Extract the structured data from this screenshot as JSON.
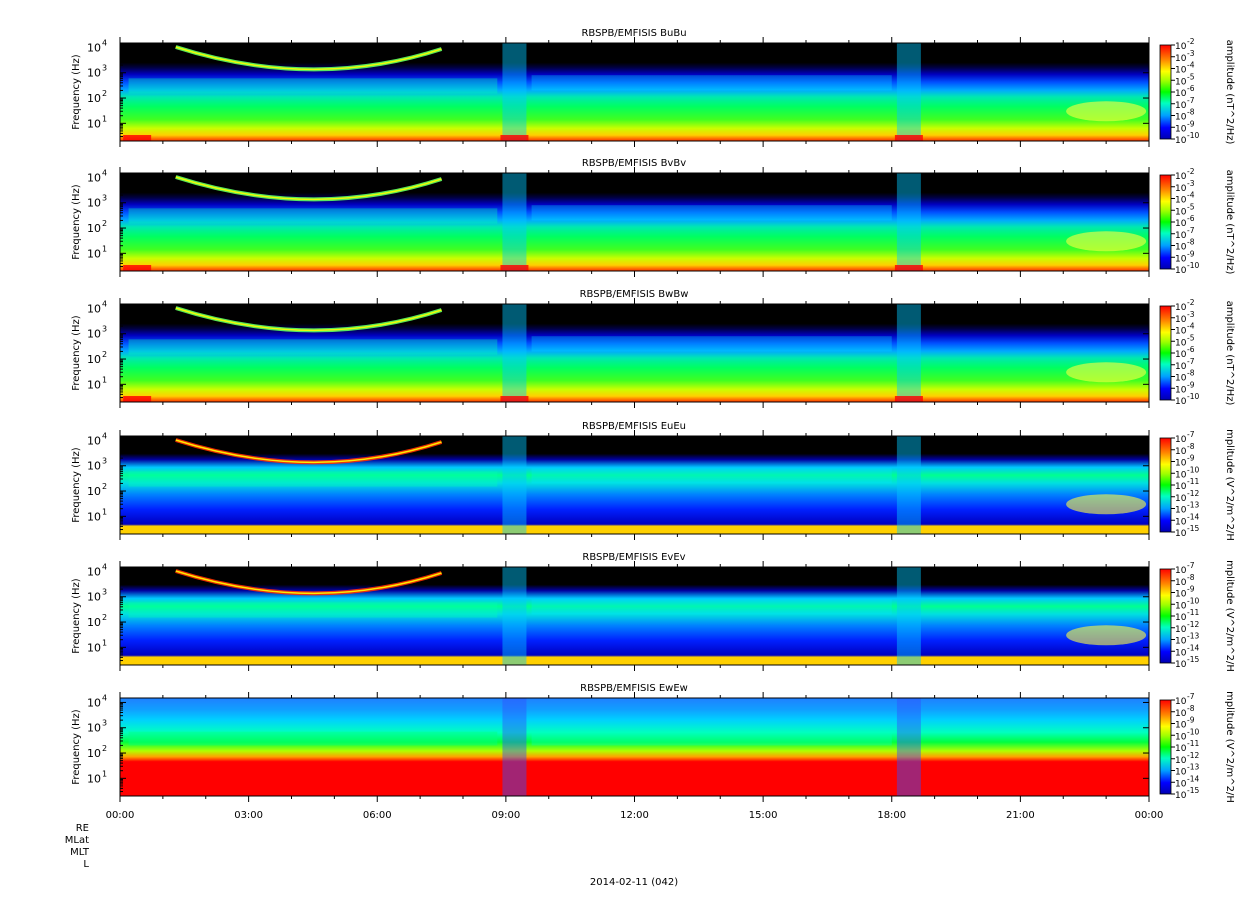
{
  "chart_data": {
    "type": "heatmap",
    "x_ticks": [
      "00:00",
      "03:00",
      "06:00",
      "09:00",
      "12:00",
      "15:00",
      "18:00",
      "21:00",
      "00:00"
    ],
    "ephemeris_labels": [
      "RE",
      "MLat",
      "MLT",
      "L"
    ],
    "date_label": "2014-02-11 (042)",
    "panels": [
      {
        "title": "RBSPB/EMFISIS  BuBu",
        "ylabel": "Frequency (Hz)",
        "yticks": [
          "10",
          "10",
          "10",
          "10"
        ],
        "yticks_exp": [
          "1",
          "2",
          "3",
          "4"
        ],
        "ylim": [
          2,
          15000
        ],
        "ylog": true,
        "cbar_label": "amplitude (nT^2/Hz)",
        "cbar_ticks": [
          "-2",
          "-3",
          "-4",
          "-5",
          "-6",
          "-7",
          "-8",
          "-9",
          "-10"
        ],
        "cbar_range": [
          -10,
          -2
        ],
        "kind": "B"
      },
      {
        "title": "RBSPB/EMFISIS  BvBv",
        "ylabel": "Frequency (Hz)",
        "yticks": [
          "10",
          "10",
          "10",
          "10"
        ],
        "yticks_exp": [
          "1",
          "2",
          "3",
          "4"
        ],
        "ylim": [
          2,
          15000
        ],
        "ylog": true,
        "cbar_label": "amplitude (nT^2/Hz)",
        "cbar_ticks": [
          "-2",
          "-3",
          "-4",
          "-5",
          "-6",
          "-7",
          "-8",
          "-9",
          "-10"
        ],
        "cbar_range": [
          -10,
          -2
        ],
        "kind": "B"
      },
      {
        "title": "RBSPB/EMFISIS  BwBw",
        "ylabel": "Frequency (Hz)",
        "yticks": [
          "10",
          "10",
          "10",
          "10"
        ],
        "yticks_exp": [
          "1",
          "2",
          "3",
          "4"
        ],
        "ylim": [
          2,
          15000
        ],
        "ylog": true,
        "cbar_label": "amplitude (nT^2/Hz)",
        "cbar_ticks": [
          "-2",
          "-3",
          "-4",
          "-5",
          "-6",
          "-7",
          "-8",
          "-9",
          "-10"
        ],
        "cbar_range": [
          -10,
          -2
        ],
        "kind": "B"
      },
      {
        "title": "RBSPB/EMFISIS  EuEu",
        "ylabel": "Frequency (Hz)",
        "yticks": [
          "10",
          "10",
          "10",
          "10"
        ],
        "yticks_exp": [
          "1",
          "2",
          "3",
          "4"
        ],
        "ylim": [
          2,
          15000
        ],
        "ylog": true,
        "cbar_label": "mplitude (V^2/m^2/H",
        "cbar_ticks": [
          "-7",
          "-8",
          "-9",
          "-10",
          "-11",
          "-12",
          "-13",
          "-14",
          "-15"
        ],
        "cbar_range": [
          -15,
          -7
        ],
        "kind": "E"
      },
      {
        "title": "RBSPB/EMFISIS  EvEv",
        "ylabel": "Frequency (Hz)",
        "yticks": [
          "10",
          "10",
          "10",
          "10"
        ],
        "yticks_exp": [
          "1",
          "2",
          "3",
          "4"
        ],
        "ylim": [
          2,
          15000
        ],
        "ylog": true,
        "cbar_label": "mplitude (V^2/m^2/H",
        "cbar_ticks": [
          "-7",
          "-8",
          "-9",
          "-10",
          "-11",
          "-12",
          "-13",
          "-14",
          "-15"
        ],
        "cbar_range": [
          -15,
          -7
        ],
        "kind": "E"
      },
      {
        "title": "RBSPB/EMFISIS  EwEw",
        "ylabel": "Frequency (Hz)",
        "yticks": [
          "10",
          "10",
          "10",
          "10"
        ],
        "yticks_exp": [
          "1",
          "2",
          "3",
          "4"
        ],
        "ylim": [
          2,
          15000
        ],
        "ylog": true,
        "cbar_label": "mplitude (V^2/m^2/H",
        "cbar_ticks": [
          "-7",
          "-8",
          "-9",
          "-10",
          "-11",
          "-12",
          "-13",
          "-14",
          "-15"
        ],
        "cbar_range": [
          -15,
          -7
        ],
        "kind": "Ew"
      }
    ]
  }
}
